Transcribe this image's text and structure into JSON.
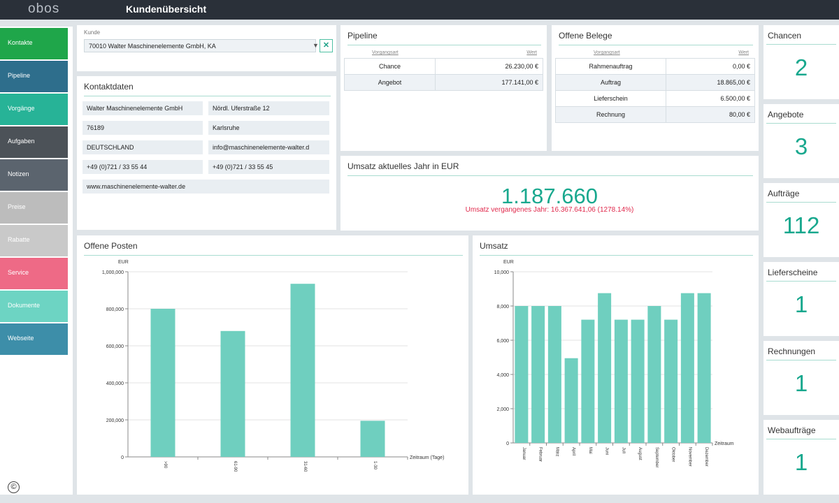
{
  "app": {
    "logo": "obos",
    "title": "Kundenübersicht"
  },
  "sidebar": {
    "items": [
      {
        "label": "Kontakte",
        "color": "#1fa64a"
      },
      {
        "label": "Pipeline",
        "color": "#2e6e8c"
      },
      {
        "label": "Vorgänge",
        "color": "#27b397"
      },
      {
        "label": "Aufgaben",
        "color": "#4c5258"
      },
      {
        "label": "Notizen",
        "color": "#5b646e"
      },
      {
        "label": "Preise",
        "color": "#bcbcbc"
      },
      {
        "label": "Rabatte",
        "color": "#c9c9c9"
      },
      {
        "label": "Service",
        "color": "#ee6a86"
      },
      {
        "label": "Dokumente",
        "color": "#6dd4c3"
      },
      {
        "label": "Webseite",
        "color": "#3d8ea9"
      }
    ]
  },
  "kunde": {
    "label": "Kunde",
    "value": "70010  Walter Maschinenelemente GmbH, KA"
  },
  "kontakt": {
    "title": "Kontaktdaten",
    "name": "Walter Maschinenelemente GmbH",
    "street": "Nördl. Uferstraße 12",
    "zip": "76189",
    "city": "Karlsruhe",
    "country": "DEUTSCHLAND",
    "email": "info@maschinenelemente-walter.d",
    "phone": "+49 (0)721 / 33 55 44",
    "fax": "+49 (0)721 / 33 55 45",
    "web": "www.maschinenelemente-walter.de"
  },
  "pipeline": {
    "title": "Pipeline",
    "col_type": "Vorgangsart",
    "col_value": "Wert",
    "rows": [
      {
        "label": "Chance",
        "value": "26.230,00 €"
      },
      {
        "label": "Angebot",
        "value": "177.141,00 €"
      }
    ]
  },
  "belege": {
    "title": "Offene Belege",
    "col_type": "Vorgangsart",
    "col_value": "Wert",
    "rows": [
      {
        "label": "Rahmenauftrag",
        "value": "0,00 €"
      },
      {
        "label": "Auftrag",
        "value": "18.865,00 €"
      },
      {
        "label": "Lieferschein",
        "value": "6.500,00 €"
      },
      {
        "label": "Rechnung",
        "value": "80,00 €"
      }
    ]
  },
  "umsatz_jahr": {
    "title": "Umsatz aktuelles Jahr in EUR",
    "value": "1.187.660",
    "previous": "Umsatz vergangenes Jahr:  16.367.641,06 (1278.14%)"
  },
  "kpis": [
    {
      "label": "Chancen",
      "value": "2"
    },
    {
      "label": "Angebote",
      "value": "3"
    },
    {
      "label": "Aufträge",
      "value": "112"
    },
    {
      "label": "Lieferscheine",
      "value": "1"
    },
    {
      "label": "Rechnungen",
      "value": "1"
    },
    {
      "label": "Webaufträge",
      "value": "1"
    }
  ],
  "charts": {
    "offene_posten_title": "Offene Posten",
    "umsatz_title": "Umsatz"
  },
  "copyright": "©",
  "chart_data": [
    {
      "type": "bar",
      "title": "Offene Posten",
      "ylabel": "EUR",
      "xlabel": "Zeitraum (Tage)",
      "categories": [
        ">90",
        "61-90",
        "31-60",
        "1-30"
      ],
      "values": [
        800000,
        680000,
        935000,
        195000
      ],
      "ylim": [
        0,
        1000000
      ],
      "yticks": [
        "0",
        "200,000",
        "400,000",
        "600,000",
        "800,000",
        "1,000,000"
      ],
      "grid": true,
      "color": "#6fcfbf"
    },
    {
      "type": "bar",
      "title": "Umsatz",
      "ylabel": "EUR",
      "xlabel": "Zeitraum",
      "categories": [
        "Januar",
        "Februar",
        "März",
        "April",
        "Mai",
        "Juni",
        "Juli",
        "August",
        "September",
        "Oktober",
        "November",
        "Dezember"
      ],
      "values": [
        8000,
        8000,
        8000,
        4950,
        7200,
        8750,
        7200,
        7200,
        8000,
        7200,
        8750,
        8750
      ],
      "ylim": [
        0,
        10000
      ],
      "yticks": [
        "0",
        "2,000",
        "4,000",
        "6,000",
        "8,000",
        "10,000"
      ],
      "grid": true,
      "color": "#6fcfbf"
    }
  ]
}
